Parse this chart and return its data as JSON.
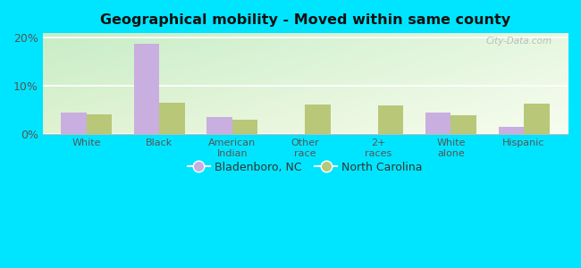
{
  "title": "Geographical mobility - Moved within same county",
  "categories": [
    "White",
    "Black",
    "American\nIndian",
    "Other\nrace",
    "2+\nraces",
    "White\nalone",
    "Hispanic"
  ],
  "bladenboro_values": [
    4.5,
    18.8,
    3.5,
    0.0,
    0.0,
    4.5,
    1.5
  ],
  "nc_values": [
    4.2,
    6.5,
    3.0,
    6.2,
    6.0,
    4.0,
    6.3
  ],
  "bar_color_bladenboro": "#c9aee0",
  "bar_color_nc": "#b8c878",
  "ylim": [
    0,
    21
  ],
  "yticks": [
    0,
    10,
    20
  ],
  "ytick_labels": [
    "0%",
    "10%",
    "20%"
  ],
  "legend_labels": [
    "Bladenboro, NC",
    "North Carolina"
  ],
  "outer_background": "#00e5ff",
  "bar_width": 0.35,
  "watermark": "City-Data.com"
}
